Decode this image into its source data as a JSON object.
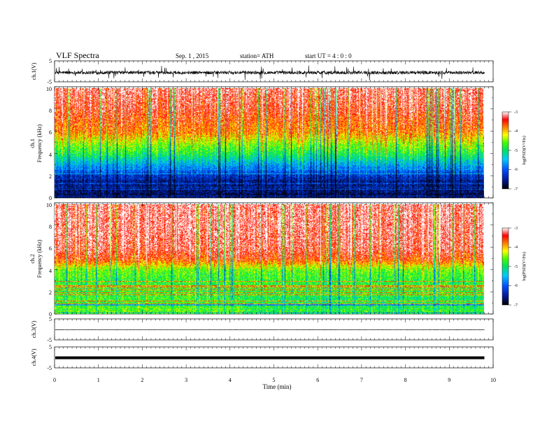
{
  "header": {
    "title": "VLF Spectra",
    "date": "Sep. 1 , 2015",
    "station": "station= ATH",
    "start": "start  UT  =   4 : 0  : 0"
  },
  "chart_data": {
    "type": "heatmap",
    "xlabel": "Time (min)",
    "xlim": [
      0,
      10
    ],
    "xticks": [
      "0",
      "1",
      "2",
      "3",
      "4",
      "5",
      "6",
      "7",
      "8",
      "9",
      "10"
    ],
    "data_end_min": 9.8,
    "panels": [
      {
        "id": "ch1-waveform",
        "type": "line",
        "ylabel": "ch.1(V)",
        "ylim": [
          -5,
          5
        ],
        "yticks": [
          "5",
          "-5"
        ],
        "baseline": -0.6,
        "noise_amplitude": 1.6,
        "color": "#000000"
      },
      {
        "id": "ch1-spectrogram",
        "type": "heatmap",
        "ylabel_top": "ch.1",
        "ylabel": "Frequency (kHz)",
        "ylim": [
          0,
          10
        ],
        "yticks": [
          "0",
          "2",
          "4",
          "6",
          "8",
          "10"
        ],
        "colorbar": {
          "label": "log(PSD)(V²/Hz)",
          "range": [
            -7,
            -3
          ],
          "ticks": [
            "-3",
            "-4",
            "-5",
            "-6",
            "-7"
          ]
        },
        "profile_khz": [
          0,
          1,
          2,
          3,
          4,
          5,
          6,
          8,
          10
        ],
        "profile_logpsd": [
          -6.7,
          -6.6,
          -6.3,
          -5.6,
          -4.9,
          -4.4,
          -3.8,
          -3.4,
          -3.2
        ]
      },
      {
        "id": "ch2-spectrogram",
        "type": "heatmap",
        "ylabel_top": "ch.2",
        "ylabel": "Frequency (kHz)",
        "ylim": [
          0,
          10
        ],
        "yticks": [
          "0",
          "2",
          "4",
          "6",
          "8",
          "10"
        ],
        "colorbar": {
          "label": "log(PSD)(V²/Hz)",
          "range": [
            -7,
            -3
          ],
          "ticks": [
            "-3",
            "-4",
            "-5",
            "-6",
            "-7"
          ]
        },
        "profile_khz": [
          0,
          1,
          2,
          3,
          4,
          5,
          6,
          8,
          10
        ],
        "profile_logpsd": [
          -4.6,
          -4.7,
          -4.8,
          -4.8,
          -4.6,
          -3.6,
          -3.3,
          -3.2,
          -3.2
        ]
      },
      {
        "id": "ch3-waveform",
        "type": "line",
        "ylabel": "ch.3(V)",
        "ylim": [
          -5,
          5
        ],
        "yticks": [
          "5",
          "-5"
        ],
        "baseline": -0.2,
        "noise_amplitude": 0.15,
        "color": "#000000"
      },
      {
        "id": "ch4-waveform",
        "type": "line",
        "ylabel": "ch.4(V)",
        "ylim": [
          -5,
          5
        ],
        "yticks": [
          "5",
          "-5"
        ],
        "baseline": -0.2,
        "noise_amplitude": 0.1,
        "line_style": "thick",
        "color": "#000000"
      }
    ]
  }
}
